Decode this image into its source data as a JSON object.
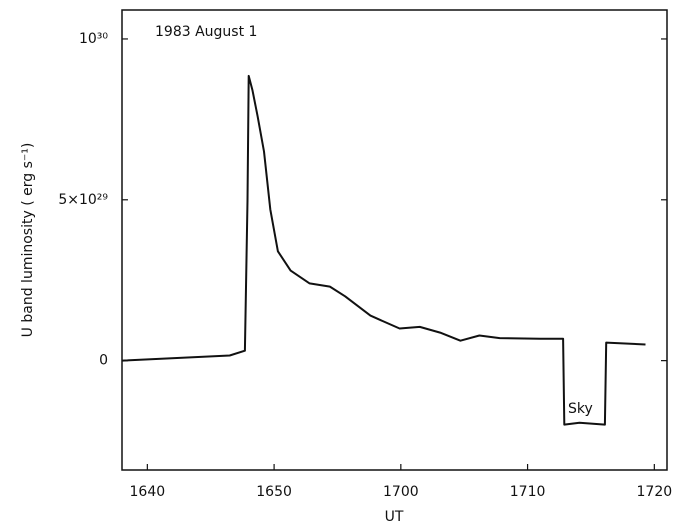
{
  "chart_data": {
    "type": "line",
    "ylabel": "U band luminosity ( erg s⁻¹)",
    "xlabel": "UT",
    "annotations": [
      "1983 August 1",
      "Sky"
    ],
    "x": [
      998,
      1006.5,
      1007.7,
      1007.9,
      1008.0,
      1008.3,
      1008.7,
      1009.2,
      1009.7,
      1010.3,
      1011.3,
      1012.8,
      1014.4,
      1015.6,
      1017.6,
      1019.9,
      1021.5,
      1023.1,
      1024.7,
      1026.2,
      1027.8,
      1031.0,
      1032.8,
      1032.9,
      1034.1,
      1036.1,
      1036.2,
      1039.3
    ],
    "series": [
      {
        "color": "#111111",
        "values": [
          0,
          1.6e+28,
          3.1e+28,
          4.97e+29,
          8.85e+29,
          8.4e+29,
          7.6e+29,
          6.5e+29,
          4.7e+29,
          3.4e+29,
          2.8e+29,
          2.4e+29,
          2.3e+29,
          2e+29,
          1.4e+29,
          1e+29,
          1.05e+29,
          8.7e+28,
          6.2e+28,
          7.8e+28,
          7e+28,
          6.8e+28,
          6.8e+28,
          -1.99e+29,
          -1.93e+29,
          -1.99e+29,
          5.6e+28,
          5e+28
        ]
      }
    ],
    "xlim": [
      998,
      1041
    ],
    "xticks": [
      {
        "value": 1000,
        "label": "1640"
      },
      {
        "value": 1010,
        "label": "1650"
      },
      {
        "value": 1020,
        "label": "1700"
      },
      {
        "value": 1030,
        "label": "1710"
      },
      {
        "value": 1040,
        "label": "1720"
      }
    ],
    "ylim": [
      -3.4e+29,
      1.09e+30
    ],
    "yticks": [
      {
        "value": 0,
        "label": "0"
      },
      {
        "value": 5e+29,
        "label": "5×10²⁹"
      },
      {
        "value": 1e+30,
        "label": "10³⁰"
      }
    ]
  }
}
